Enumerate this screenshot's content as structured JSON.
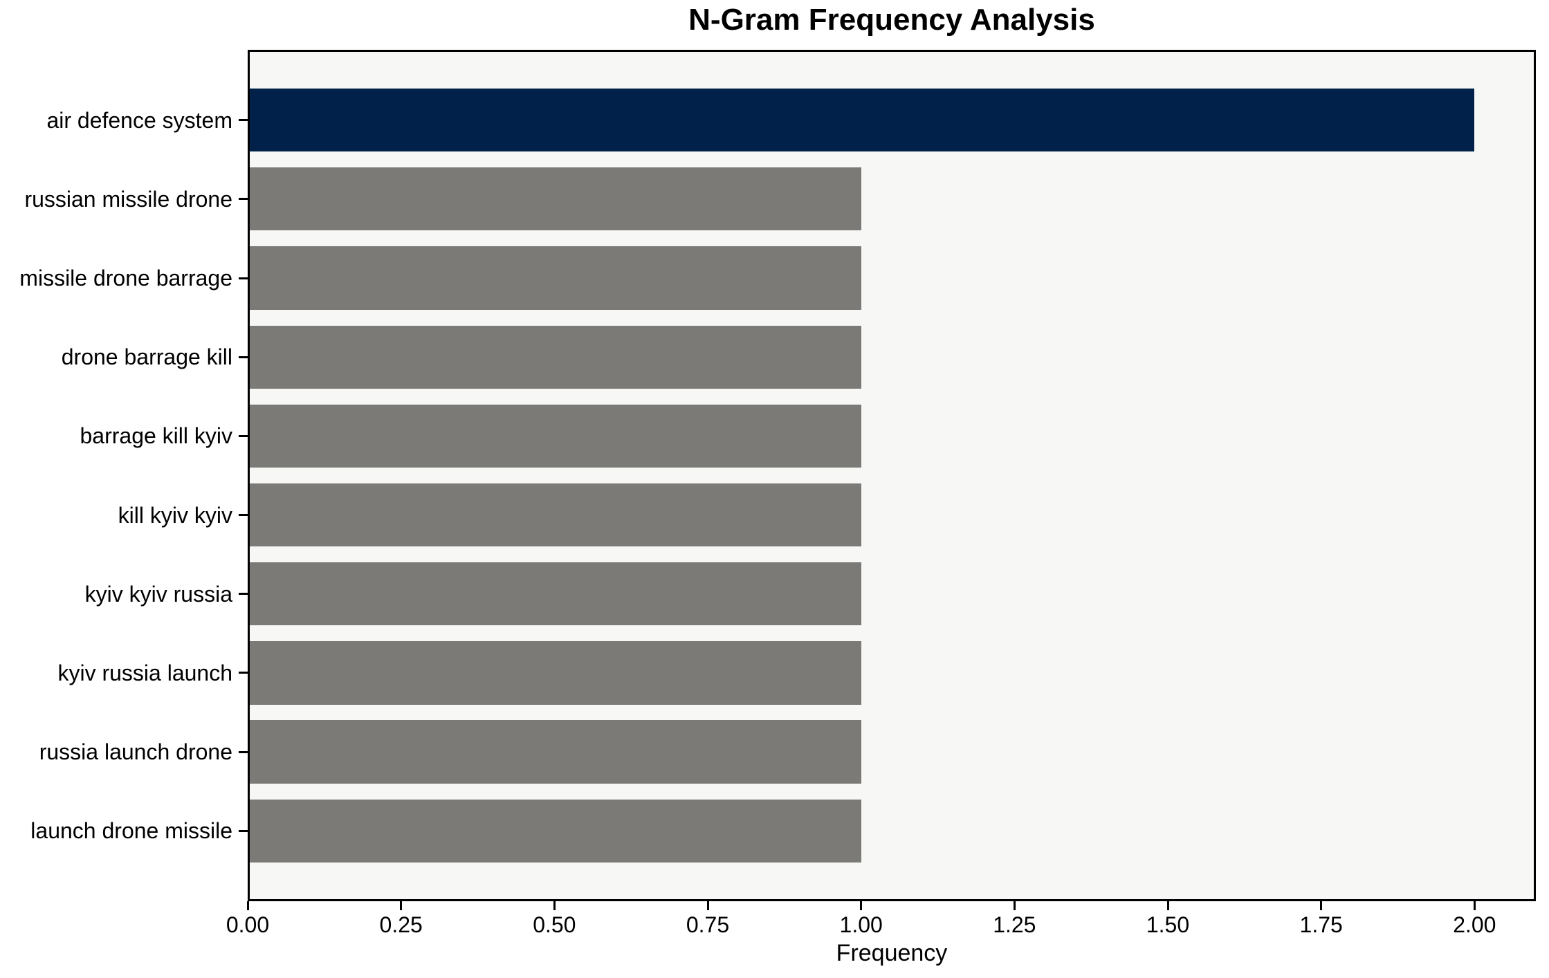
{
  "chart_data": {
    "type": "bar",
    "orientation": "horizontal",
    "title": "N-Gram Frequency Analysis",
    "xlabel": "Frequency",
    "ylabel": "",
    "categories": [
      "air defence system",
      "russian missile drone",
      "missile drone barrage",
      "drone barrage kill",
      "barrage kill kyiv",
      "kill kyiv kyiv",
      "kyiv kyiv russia",
      "kyiv russia launch",
      "russia launch drone",
      "launch drone missile"
    ],
    "values": [
      2,
      1,
      1,
      1,
      1,
      1,
      1,
      1,
      1,
      1
    ],
    "bar_colors": [
      "#01214a",
      "#7b7a77",
      "#7b7a77",
      "#7b7a77",
      "#7b7a77",
      "#7b7a77",
      "#7b7a77",
      "#7b7a77",
      "#7b7a77",
      "#7b7a77"
    ],
    "xlim": [
      0,
      2.1
    ],
    "xticks": [
      0,
      0.25,
      0.5,
      0.75,
      1,
      1.25,
      1.5,
      1.75,
      2
    ],
    "xtick_labels": [
      "0.00",
      "0.25",
      "0.50",
      "0.75",
      "1.00",
      "1.25",
      "1.50",
      "1.75",
      "2.00"
    ],
    "grid": false,
    "legend": "none",
    "colors": {
      "highlight_bar": "#01214a",
      "default_bar": "#7b7a77",
      "plot_background": "#f7f7f5",
      "figure_background": "#ffffff",
      "spine": "#000000",
      "text": "#000000"
    }
  }
}
